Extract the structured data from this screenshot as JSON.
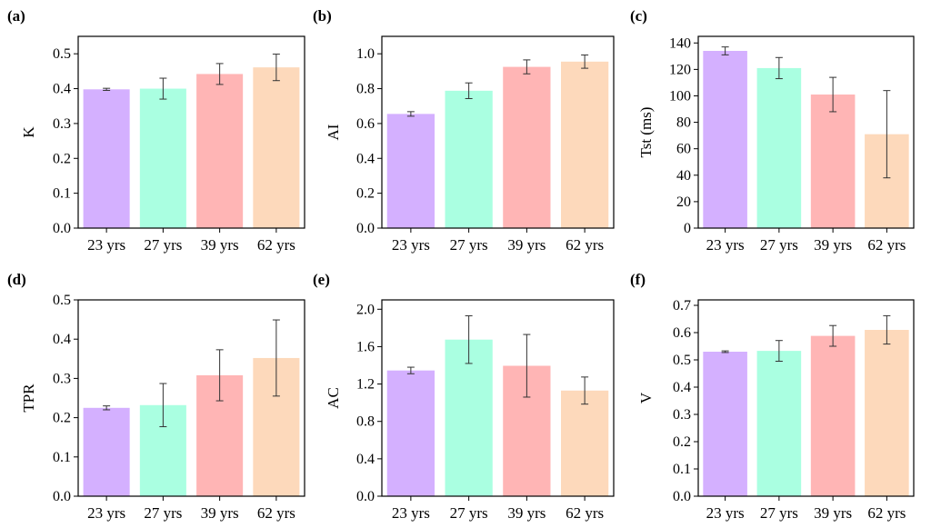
{
  "figure": {
    "categories": [
      "23 yrs",
      "27 yrs",
      "39 yrs",
      "62 yrs"
    ],
    "colors": [
      "#d4b0ff",
      "#aaffe1",
      "#ffb5b5",
      "#fdd9bb"
    ],
    "error_bar_color": "#333333"
  },
  "chart_data": [
    {
      "type": "bar",
      "panel": "(a)",
      "title": "",
      "xlabel": "",
      "ylabel": "K",
      "categories": [
        "23 yrs",
        "27 yrs",
        "39 yrs",
        "62 yrs"
      ],
      "values": [
        0.398,
        0.4,
        0.442,
        0.461
      ],
      "errors": [
        0.003,
        0.03,
        0.03,
        0.038
      ],
      "ylim": [
        0.0,
        0.55
      ],
      "yticks": [
        0.0,
        0.1,
        0.2,
        0.3,
        0.4,
        0.5
      ],
      "ytick_labels": [
        "0.0",
        "0.1",
        "0.2",
        "0.3",
        "0.4",
        "0.5"
      ]
    },
    {
      "type": "bar",
      "panel": "(b)",
      "title": "",
      "xlabel": "",
      "ylabel": "AI",
      "categories": [
        "23 yrs",
        "27 yrs",
        "39 yrs",
        "62 yrs"
      ],
      "values": [
        0.655,
        0.788,
        0.925,
        0.955
      ],
      "errors": [
        0.013,
        0.045,
        0.04,
        0.038
      ],
      "ylim": [
        0.0,
        1.1
      ],
      "yticks": [
        0.0,
        0.2,
        0.4,
        0.6,
        0.8,
        1.0
      ],
      "ytick_labels": [
        "0.0",
        "0.2",
        "0.4",
        "0.6",
        "0.8",
        "1.0"
      ]
    },
    {
      "type": "bar",
      "panel": "(c)",
      "title": "",
      "xlabel": "",
      "ylabel": "Tst (ms)",
      "categories": [
        "23 yrs",
        "27 yrs",
        "39 yrs",
        "62 yrs"
      ],
      "values": [
        134,
        121,
        101,
        71
      ],
      "errors": [
        3,
        8,
        13,
        33
      ],
      "ylim": [
        0,
        145
      ],
      "yticks": [
        0,
        20,
        40,
        60,
        80,
        100,
        120,
        140
      ],
      "ytick_labels": [
        "0",
        "20",
        "40",
        "60",
        "80",
        "100",
        "120",
        "140"
      ]
    },
    {
      "type": "bar",
      "panel": "(d)",
      "title": "",
      "xlabel": "",
      "ylabel": "TPR",
      "categories": [
        "23 yrs",
        "27 yrs",
        "39 yrs",
        "62 yrs"
      ],
      "values": [
        0.225,
        0.232,
        0.308,
        0.352
      ],
      "errors": [
        0.005,
        0.055,
        0.065,
        0.097
      ],
      "ylim": [
        0.0,
        0.5
      ],
      "yticks": [
        0.0,
        0.1,
        0.2,
        0.3,
        0.4,
        0.5
      ],
      "ytick_labels": [
        "0.0",
        "0.1",
        "0.2",
        "0.3",
        "0.4",
        "0.5"
      ]
    },
    {
      "type": "bar",
      "panel": "(e)",
      "title": "",
      "xlabel": "",
      "ylabel": "AC",
      "categories": [
        "23 yrs",
        "27 yrs",
        "39 yrs",
        "62 yrs"
      ],
      "values": [
        1.345,
        1.675,
        1.395,
        1.13
      ],
      "errors": [
        0.035,
        0.255,
        0.335,
        0.145
      ],
      "ylim": [
        0.0,
        2.1
      ],
      "yticks": [
        0.0,
        0.4,
        0.8,
        1.2,
        1.6,
        2.0
      ],
      "ytick_labels": [
        "0.0",
        "0.4",
        "0.8",
        "1.2",
        "1.6",
        "2.0"
      ]
    },
    {
      "type": "bar",
      "panel": "(f)",
      "title": "",
      "xlabel": "",
      "ylabel": "V",
      "categories": [
        "23 yrs",
        "27 yrs",
        "39 yrs",
        "62 yrs"
      ],
      "values": [
        0.53,
        0.533,
        0.588,
        0.61
      ],
      "errors": [
        0.003,
        0.038,
        0.038,
        0.052
      ],
      "ylim": [
        0.0,
        0.72
      ],
      "yticks": [
        0.0,
        0.1,
        0.2,
        0.3,
        0.4,
        0.5,
        0.6,
        0.7
      ],
      "ytick_labels": [
        "0.0",
        "0.1",
        "0.2",
        "0.3",
        "0.4",
        "0.5",
        "0.6",
        "0.7"
      ]
    }
  ]
}
